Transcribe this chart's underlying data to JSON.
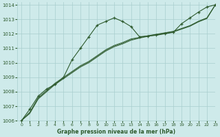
{
  "title": "Graphe pression niveau de la mer (hPa)",
  "background_color": "#ceeaea",
  "grid_color": "#a8cece",
  "line_color": "#2d5a2d",
  "xlim": [
    -0.5,
    23
  ],
  "ylim": [
    1006,
    1014.2
  ],
  "xticks": [
    0,
    1,
    2,
    3,
    4,
    5,
    6,
    7,
    8,
    9,
    10,
    11,
    12,
    13,
    14,
    15,
    16,
    17,
    18,
    19,
    20,
    21,
    22,
    23
  ],
  "yticks": [
    1006,
    1007,
    1008,
    1009,
    1010,
    1011,
    1012,
    1013,
    1014
  ],
  "series_marker": {
    "x": [
      0,
      1,
      2,
      3,
      4,
      5,
      6,
      7,
      8,
      9,
      10,
      11,
      12,
      13,
      14,
      15,
      16,
      17,
      18,
      19,
      20,
      21,
      22,
      23
    ],
    "y": [
      1006.0,
      1006.8,
      1007.7,
      1008.2,
      1008.5,
      1009.0,
      1010.2,
      1011.0,
      1011.8,
      1012.6,
      1012.85,
      1013.1,
      1012.85,
      1012.5,
      1011.8,
      1011.85,
      1011.9,
      1012.0,
      1012.1,
      1012.7,
      1013.1,
      1013.5,
      1013.85,
      1014.0
    ]
  },
  "series_smooth": [
    {
      "x": [
        0,
        1,
        2,
        3,
        4,
        5,
        6,
        7,
        8,
        9,
        10,
        11,
        12,
        13,
        14,
        15,
        16,
        17,
        18,
        19,
        20,
        21,
        22,
        23
      ],
      "y": [
        1006.0,
        1006.5,
        1007.5,
        1008.0,
        1008.5,
        1008.9,
        1009.3,
        1009.7,
        1010.0,
        1010.4,
        1010.8,
        1011.1,
        1011.3,
        1011.55,
        1011.7,
        1011.82,
        1011.92,
        1012.02,
        1012.12,
        1012.32,
        1012.52,
        1012.82,
        1013.05,
        1014.0
      ]
    },
    {
      "x": [
        0,
        1,
        2,
        3,
        4,
        5,
        6,
        7,
        8,
        9,
        10,
        11,
        12,
        13,
        14,
        15,
        16,
        17,
        18,
        19,
        20,
        21,
        22,
        23
      ],
      "y": [
        1006.0,
        1006.55,
        1007.55,
        1008.05,
        1008.55,
        1008.95,
        1009.35,
        1009.75,
        1010.05,
        1010.45,
        1010.85,
        1011.15,
        1011.35,
        1011.6,
        1011.73,
        1011.85,
        1011.95,
        1012.05,
        1012.15,
        1012.35,
        1012.55,
        1012.85,
        1013.08,
        1014.0
      ]
    },
    {
      "x": [
        0,
        1,
        2,
        3,
        4,
        5,
        6,
        7,
        8,
        9,
        10,
        11,
        12,
        13,
        14,
        15,
        16,
        17,
        18,
        19,
        20,
        21,
        22,
        23
      ],
      "y": [
        1006.0,
        1006.6,
        1007.6,
        1008.1,
        1008.6,
        1009.0,
        1009.4,
        1009.8,
        1010.1,
        1010.5,
        1010.9,
        1011.2,
        1011.4,
        1011.65,
        1011.75,
        1011.87,
        1011.97,
        1012.07,
        1012.17,
        1012.37,
        1012.57,
        1012.87,
        1013.1,
        1014.0
      ]
    }
  ]
}
